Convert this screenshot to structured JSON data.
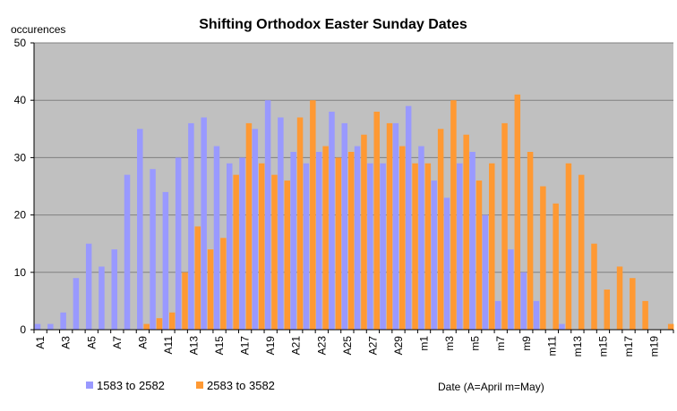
{
  "chart_data": {
    "type": "bar",
    "title": "Shifting Orthodox Easter Sunday Dates",
    "ylabel": "occurences",
    "xlabel": "Date  (A=April  m=May)",
    "ylim": [
      0,
      50
    ],
    "yticks": [
      0,
      10,
      20,
      30,
      40,
      50
    ],
    "grid": true,
    "legend_position": "bottom-left",
    "categories": [
      "A1",
      "A2",
      "A3",
      "A4",
      "A5",
      "A6",
      "A7",
      "A8",
      "A9",
      "A10",
      "A11",
      "A12",
      "A13",
      "A14",
      "A15",
      "A16",
      "A17",
      "A18",
      "A19",
      "A20",
      "A21",
      "A22",
      "A23",
      "A24",
      "A25",
      "A26",
      "A27",
      "A28",
      "A29",
      "A30",
      "m1",
      "m2",
      "m3",
      "m4",
      "m5",
      "m6",
      "m7",
      "m8",
      "m9",
      "m10",
      "m11",
      "m12",
      "m13",
      "m14",
      "m15",
      "m16",
      "m17",
      "m18",
      "m19",
      "m20"
    ],
    "xtick_labels": [
      "A1",
      "A3",
      "A5",
      "A7",
      "A9",
      "A11",
      "A13",
      "A15",
      "A17",
      "A19",
      "A21",
      "A23",
      "A25",
      "A27",
      "A29",
      "m1",
      "m3",
      "m5",
      "m7",
      "m9",
      "m11",
      "m13",
      "m15",
      "m17",
      "m19"
    ],
    "series": [
      {
        "name": "1583 to 2582",
        "color": "#9999FF",
        "values": [
          1,
          1,
          3,
          9,
          15,
          11,
          14,
          27,
          35,
          28,
          24,
          30,
          36,
          37,
          32,
          29,
          30,
          35,
          40,
          37,
          31,
          29,
          31,
          38,
          36,
          32,
          29,
          29,
          36,
          39,
          32,
          26,
          23,
          29,
          31,
          20,
          5,
          14,
          10,
          5,
          0,
          1,
          0,
          0,
          0,
          0,
          0,
          0,
          0,
          0
        ]
      },
      {
        "name": "2583 to 3582",
        "color": "#FF9933",
        "values": [
          0,
          0,
          0,
          0,
          0,
          0,
          0,
          0,
          1,
          2,
          3,
          10,
          18,
          14,
          16,
          27,
          36,
          29,
          27,
          26,
          37,
          40,
          32,
          30,
          31,
          34,
          38,
          36,
          32,
          29,
          29,
          35,
          40,
          34,
          26,
          29,
          36,
          41,
          31,
          25,
          22,
          29,
          27,
          15,
          7,
          11,
          9,
          5,
          0,
          1
        ]
      }
    ]
  }
}
